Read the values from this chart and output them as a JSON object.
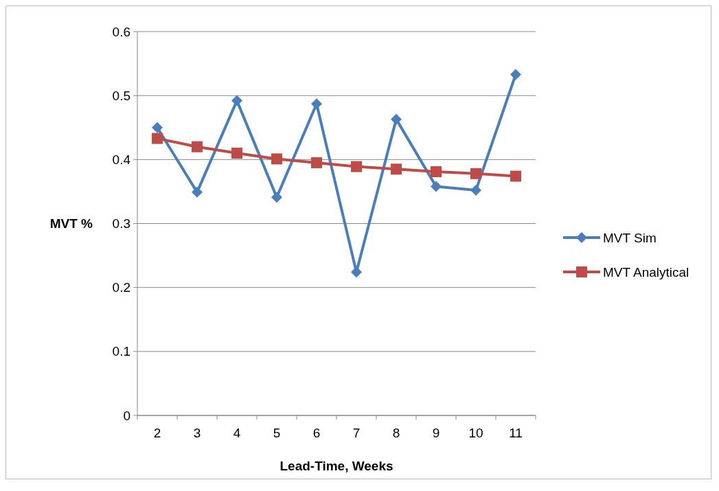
{
  "chart_data": {
    "type": "line",
    "xlabel": "Lead-Time, Weeks",
    "ylabel": "MVT %",
    "categories": [
      "2",
      "3",
      "4",
      "5",
      "6",
      "7",
      "8",
      "9",
      "10",
      "11"
    ],
    "ylim": [
      0,
      0.6
    ],
    "yticks": [
      0,
      0.1,
      0.2,
      0.3,
      0.4,
      0.5,
      0.6
    ],
    "grid": "y",
    "legend": "right",
    "series": [
      {
        "name": "MVT Sim",
        "color": "#4a7ebb",
        "marker": "diamond",
        "values": [
          0.45,
          0.349,
          0.492,
          0.341,
          0.487,
          0.224,
          0.463,
          0.358,
          0.352,
          0.533
        ]
      },
      {
        "name": "MVT Analytical",
        "color": "#be4b48",
        "marker": "square",
        "values": [
          0.433,
          0.42,
          0.41,
          0.401,
          0.395,
          0.389,
          0.385,
          0.381,
          0.378,
          0.374
        ]
      }
    ]
  }
}
